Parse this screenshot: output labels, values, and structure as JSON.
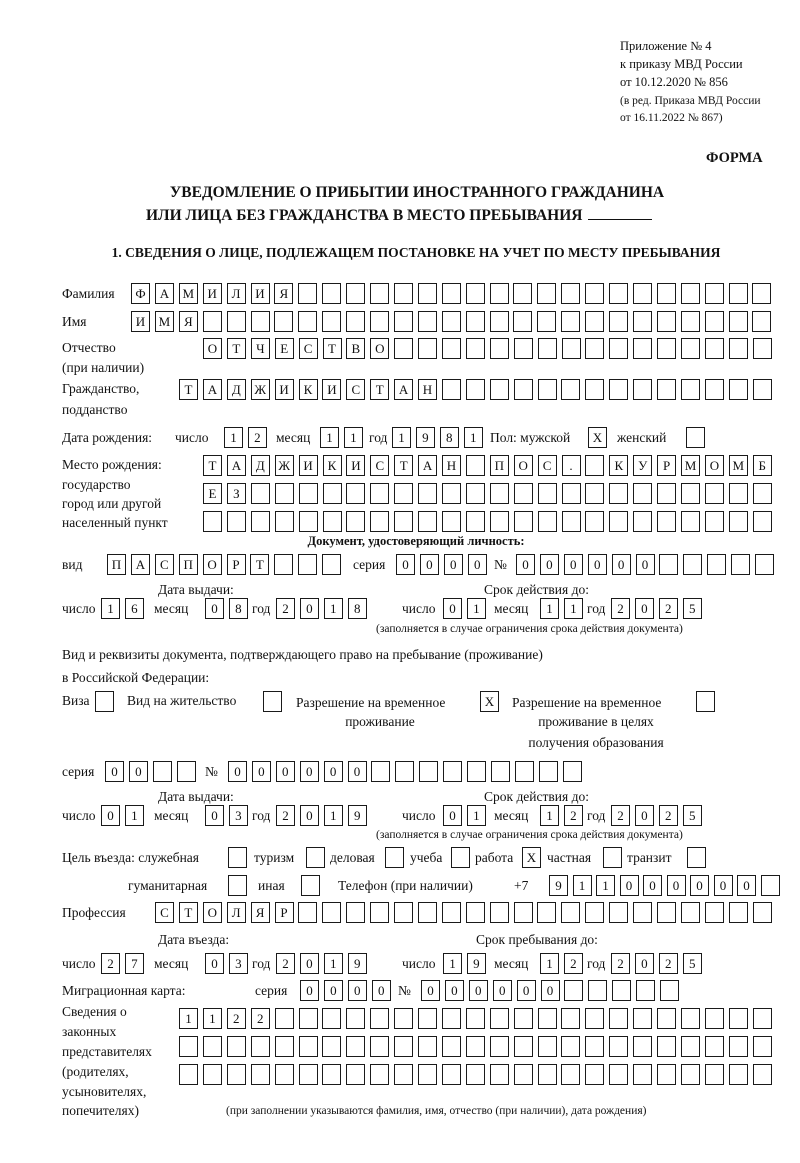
{
  "header": {
    "appendix_lines": [
      "Приложение № 4",
      "к приказу МВД России",
      "от 10.12.2020 № 856"
    ],
    "revision_lines": [
      "(в ред. Приказа МВД России",
      "от 16.11.2022 № 867)"
    ],
    "form_label": "ФОРМА",
    "title_line1": "УВЕДОМЛЕНИЕ О ПРИБЫТИИ ИНОСТРАННОГО ГРАЖДАНИНА",
    "title_line2": "ИЛИ ЛИЦА БЕЗ ГРАЖДАНСТВА В МЕСТО ПРЕБЫВАНИЯ",
    "section1": "1. СВЕДЕНИЯ О ЛИЦЕ, ПОДЛЕЖАЩЕМ ПОСТАНОВКЕ НА УЧЕТ ПО МЕСТУ ПРЕБЫВАНИЯ"
  },
  "labels": {
    "surname": "Фамилия",
    "name": "Имя",
    "patronymic1": "Отчество",
    "patronymic2": "(при наличии)",
    "citizenship1": "Гражданство,",
    "citizenship2": "подданство",
    "birth_date": "Дата рождения:",
    "day": "число",
    "month": "месяц",
    "year": "год",
    "sex": "Пол: мужской",
    "female": "женский",
    "birthplace1": "Место рождения:",
    "birthplace2": "государство",
    "birthplace3": "город или другой",
    "birthplace4": "населенный пункт",
    "id_doc": "Документ, удостоверяющий личность:",
    "doc_type": "вид",
    "series": "серия",
    "number": "№",
    "issue_date": "Дата выдачи:",
    "valid_until": "Срок действия до:",
    "valid_note": "(заполняется в случае ограничения срока действия документа)",
    "right_doc1": "Вид и реквизиты документа, подтверждающего право на пребывание (проживание)",
    "right_doc2": "в Российской Федерации:",
    "visa": "Виза",
    "residence": "Вид на жительство",
    "trp1": "Разрешение на временное",
    "trp2": "проживание",
    "trp_edu1": "Разрешение на временное",
    "trp_edu2": "проживание в целях",
    "trp_edu3": "получения образования",
    "purpose": "Цель въезда: служебная",
    "tourism": "туризм",
    "business": "деловая",
    "study": "учеба",
    "work": "работа",
    "private": "частная",
    "transit": "транзит",
    "humanitarian": "гуманитарная",
    "other": "иная",
    "phone": "Телефон (при наличии)",
    "phone_prefix": "+7",
    "profession": "Профессия",
    "entry_date": "Дата въезда:",
    "stay_until": "Срок пребывания до:",
    "migration_card": "Миграционная карта:",
    "reps": [
      "Сведения о",
      "законных",
      "представителях",
      "(родителях,",
      "усыновителях,",
      "попечителях)"
    ],
    "reps_note": "(при заполнении указываются фамилия, имя, отчество (при наличии), дата рождения)"
  },
  "boxes": {
    "surname": "ФАМИЛИЯ",
    "name": "ИМЯ",
    "patronymic": "ОТЧЕСТВО",
    "citizenship": "ТАДЖИКИСТАН",
    "birth_day": "12",
    "birth_month": "11",
    "birth_year": "1981",
    "sex_male": "X",
    "sex_female": "",
    "birthplace1": "ТАДЖИКИСТАН ПОС. КУРМОМБ",
    "birthplace2": "ЕЗ",
    "birthplace3": "",
    "doc_type": "ПАСПОРТ",
    "doc_series": "0000",
    "doc_number": "000000",
    "doc_issue_day": "16",
    "doc_issue_month": "08",
    "doc_issue_year": "2018",
    "doc_valid_day": "01",
    "doc_valid_month": "11",
    "doc_valid_year": "2025",
    "visa": "",
    "residence": "",
    "trp": "X",
    "trp_edu": "",
    "permit_series": "00",
    "permit_number": "000000",
    "permit_issue_day": "01",
    "permit_issue_month": "03",
    "permit_issue_year": "2019",
    "permit_valid_day": "01",
    "permit_valid_month": "12",
    "permit_valid_year": "2025",
    "p_service": "",
    "p_tourism": "",
    "p_business": "",
    "p_study": "",
    "p_work": "X",
    "p_private": "",
    "p_transit": "",
    "p_humanitarian": "",
    "p_other": "",
    "phone": "911000000",
    "profession": "СТОЛЯР",
    "entry_day": "27",
    "entry_month": "03",
    "entry_year": "2019",
    "stay_day": "19",
    "stay_month": "12",
    "stay_year": "2025",
    "mig_series": "0000",
    "mig_number": "000000",
    "reps1": "1122",
    "reps2": "",
    "reps3": ""
  }
}
